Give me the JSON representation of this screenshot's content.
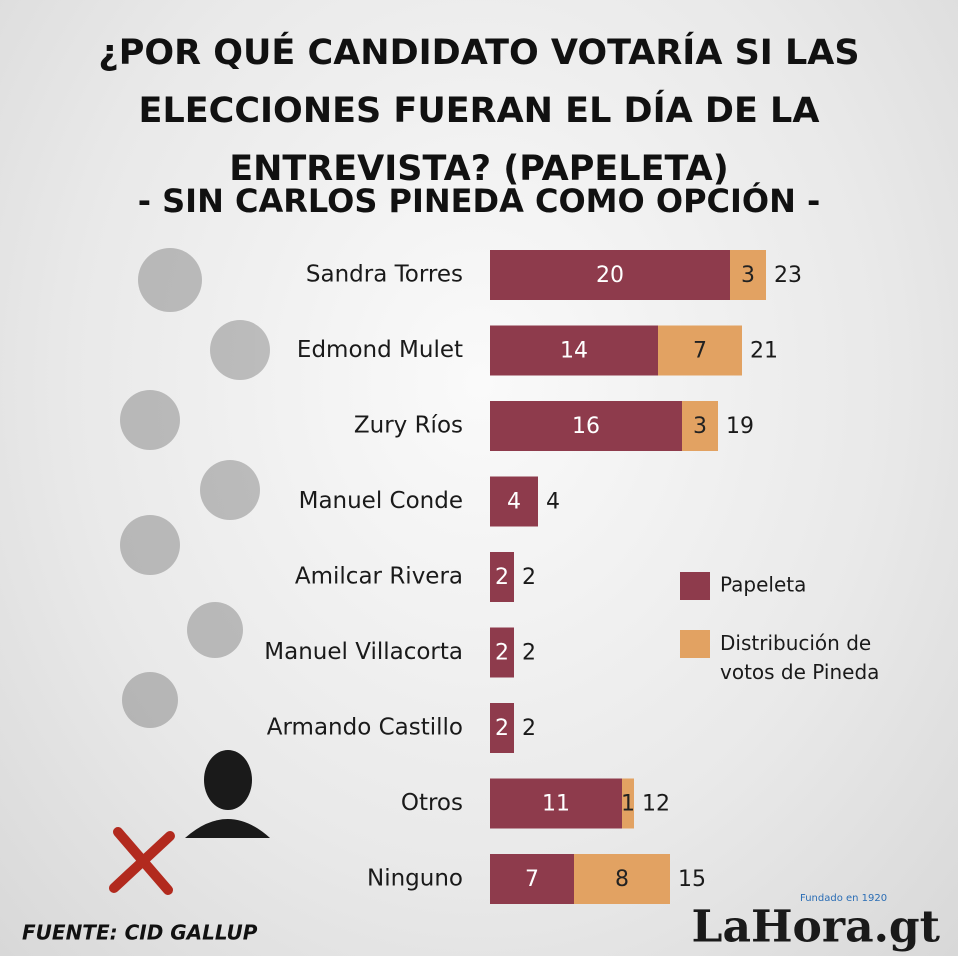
{
  "chart_data": {
    "type": "stacked-bar-horizontal",
    "title": "¿POR QUÉ CANDIDATO VOTARÍA SI LAS ELECCIONES FUERAN EL DÍA DE LA ENTREVISTA? (PAPELETA)",
    "subtitle": "- SIN CARLOS PINEDA COMO OPCIÓN -",
    "categories": [
      "Sandra Torres",
      "Edmond Mulet",
      "Zury Ríos",
      "Manuel Conde",
      "Amilcar Rivera",
      "Manuel Villacorta",
      "Armando Castillo",
      "Otros",
      "Ninguno"
    ],
    "series": [
      {
        "name": "Papeleta",
        "color": "#8e3b4c",
        "values": [
          20,
          14,
          16,
          4,
          2,
          2,
          2,
          11,
          7
        ]
      },
      {
        "name": "Distribución de votos de Pineda",
        "color": "#e2a262",
        "values": [
          3,
          7,
          3,
          null,
          null,
          null,
          null,
          1,
          8
        ]
      }
    ],
    "totals": [
      23,
      21,
      19,
      4,
      2,
      2,
      2,
      12,
      15
    ],
    "source": "FUENTE: CID GALLUP",
    "logo": {
      "name": "LaHora.gt",
      "tagline": "Fundado en 1920"
    }
  }
}
